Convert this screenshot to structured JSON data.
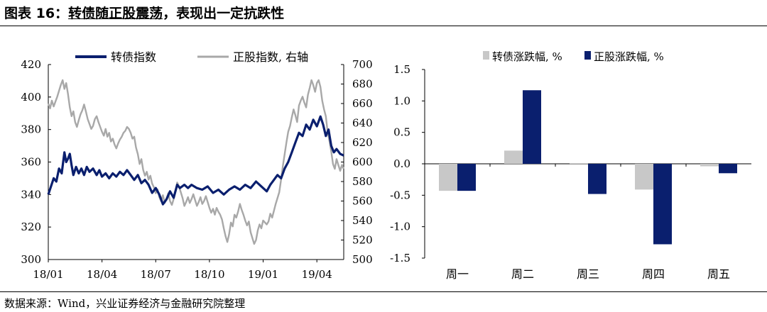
{
  "header": {
    "figure_label": "图表 16：",
    "title": "转债随正股震荡",
    "title_rest": "，表现出一定抗跌性"
  },
  "footer": {
    "source": "数据来源：Wind，兴业证券经济与金融研究院整理"
  },
  "colors": {
    "navy": "#0a1f6e",
    "gray": "#a8a8a8",
    "lightgray": "#c8c8c8"
  },
  "chart_data": [
    {
      "type": "line",
      "legend": [
        "转债指数",
        "正股指数, 右轴"
      ],
      "x_ticks": [
        "18/01",
        "18/04",
        "18/07",
        "18/10",
        "19/01",
        "19/04"
      ],
      "y_left": {
        "ticks": [
          "420",
          "400",
          "380",
          "360",
          "340",
          "320",
          "300"
        ],
        "lim": [
          300,
          420
        ]
      },
      "y_right": {
        "ticks": [
          "700",
          "680",
          "660",
          "640",
          "620",
          "600",
          "580",
          "560",
          "540",
          "520",
          "500"
        ],
        "lim": [
          500,
          700
        ]
      },
      "x_range": [
        0,
        16.5
      ],
      "series": [
        {
          "name": "转债指数",
          "axis": "left",
          "points": [
            [
              0,
              340
            ],
            [
              0.15,
              345
            ],
            [
              0.3,
              350
            ],
            [
              0.45,
              348
            ],
            [
              0.6,
              356
            ],
            [
              0.75,
              353
            ],
            [
              0.9,
              366
            ],
            [
              1.0,
              360
            ],
            [
              1.1,
              362
            ],
            [
              1.2,
              365
            ],
            [
              1.3,
              358
            ],
            [
              1.4,
              352
            ],
            [
              1.55,
              357
            ],
            [
              1.7,
              353
            ],
            [
              1.85,
              356
            ],
            [
              2.0,
              352
            ],
            [
              2.15,
              357
            ],
            [
              2.3,
              354
            ],
            [
              2.5,
              356
            ],
            [
              2.7,
              352
            ],
            [
              2.85,
              355
            ],
            [
              3.0,
              351
            ],
            [
              3.2,
              353
            ],
            [
              3.4,
              350
            ],
            [
              3.6,
              353
            ],
            [
              3.8,
              351
            ],
            [
              4.0,
              354
            ],
            [
              4.2,
              352
            ],
            [
              4.4,
              355
            ],
            [
              4.6,
              352
            ],
            [
              4.8,
              349
            ],
            [
              5.0,
              352
            ],
            [
              5.2,
              347
            ],
            [
              5.4,
              349
            ],
            [
              5.6,
              346
            ],
            [
              5.8,
              341
            ],
            [
              6.0,
              344
            ],
            [
              6.2,
              340
            ],
            [
              6.4,
              334
            ],
            [
              6.6,
              337
            ],
            [
              6.8,
              342
            ],
            [
              7.0,
              338
            ],
            [
              7.2,
              346
            ],
            [
              7.35,
              344
            ],
            [
              7.6,
              346
            ],
            [
              7.8,
              344
            ],
            [
              8.0,
              346
            ],
            [
              8.3,
              344
            ],
            [
              8.6,
              343
            ],
            [
              8.9,
              345
            ],
            [
              9.2,
              341
            ],
            [
              9.5,
              343
            ],
            [
              9.8,
              340
            ],
            [
              10.1,
              343
            ],
            [
              10.4,
              345
            ],
            [
              10.7,
              343
            ],
            [
              11.0,
              346
            ],
            [
              11.3,
              344
            ],
            [
              11.6,
              348
            ],
            [
              11.9,
              345
            ],
            [
              12.2,
              342
            ],
            [
              12.4,
              346
            ],
            [
              12.6,
              349
            ],
            [
              12.8,
              352
            ],
            [
              13.0,
              350
            ],
            [
              13.2,
              356
            ],
            [
              13.4,
              360
            ],
            [
              13.6,
              366
            ],
            [
              13.8,
              372
            ],
            [
              14.0,
              378
            ],
            [
              14.2,
              376
            ],
            [
              14.4,
              383
            ],
            [
              14.6,
              380
            ],
            [
              14.8,
              386
            ],
            [
              15.0,
              382
            ],
            [
              15.2,
              388
            ],
            [
              15.35,
              383
            ],
            [
              15.5,
              376
            ],
            [
              15.65,
              380
            ],
            [
              15.8,
              370
            ],
            [
              15.95,
              366
            ],
            [
              16.1,
              368
            ],
            [
              16.3,
              365
            ],
            [
              16.5,
              364
            ]
          ]
        },
        {
          "name": "正股指数, 右轴",
          "axis": "right",
          "points": [
            [
              0,
              660
            ],
            [
              0.1,
              655
            ],
            [
              0.2,
              663
            ],
            [
              0.3,
              657
            ],
            [
              0.4,
              662
            ],
            [
              0.5,
              667
            ],
            [
              0.6,
              673
            ],
            [
              0.7,
              679
            ],
            [
              0.8,
              684
            ],
            [
              0.9,
              675
            ],
            [
              1.0,
              681
            ],
            [
              1.1,
              670
            ],
            [
              1.2,
              656
            ],
            [
              1.3,
              647
            ],
            [
              1.4,
              652
            ],
            [
              1.5,
              641
            ],
            [
              1.6,
              636
            ],
            [
              1.7,
              643
            ],
            [
              1.8,
              649
            ],
            [
              1.9,
              653
            ],
            [
              2.0,
              659
            ],
            [
              2.1,
              652
            ],
            [
              2.2,
              644
            ],
            [
              2.3,
              639
            ],
            [
              2.4,
              634
            ],
            [
              2.5,
              637
            ],
            [
              2.6,
              644
            ],
            [
              2.7,
              647
            ],
            [
              2.8,
              641
            ],
            [
              2.9,
              636
            ],
            [
              3.0,
              631
            ],
            [
              3.1,
              627
            ],
            [
              3.2,
              634
            ],
            [
              3.3,
              626
            ],
            [
              3.4,
              630
            ],
            [
              3.5,
              621
            ],
            [
              3.6,
              624
            ],
            [
              3.7,
              618
            ],
            [
              3.8,
              614
            ],
            [
              3.9,
              619
            ],
            [
              4.0,
              623
            ],
            [
              4.1,
              626
            ],
            [
              4.2,
              630
            ],
            [
              4.3,
              632
            ],
            [
              4.4,
              636
            ],
            [
              4.5,
              634
            ],
            [
              4.6,
              630
            ],
            [
              4.7,
              624
            ],
            [
              4.8,
              626
            ],
            [
              4.9,
              615
            ],
            [
              5.0,
              608
            ],
            [
              5.1,
              598
            ],
            [
              5.2,
              603
            ],
            [
              5.3,
              592
            ],
            [
              5.4,
              586
            ],
            [
              5.5,
              590
            ],
            [
              5.6,
              582
            ],
            [
              5.7,
              586
            ],
            [
              5.8,
              578
            ],
            [
              5.9,
              574
            ],
            [
              6.0,
              568
            ],
            [
              6.1,
              572
            ],
            [
              6.2,
              564
            ],
            [
              6.3,
              560
            ],
            [
              6.4,
              566
            ],
            [
              6.5,
              558
            ],
            [
              6.6,
              562
            ],
            [
              6.7,
              568
            ],
            [
              6.8,
              560
            ],
            [
              6.9,
              556
            ],
            [
              7.0,
              562
            ],
            [
              7.1,
              570
            ],
            [
              7.2,
              579
            ],
            [
              7.3,
              575
            ],
            [
              7.4,
              569
            ],
            [
              7.5,
              563
            ],
            [
              7.6,
              555
            ],
            [
              7.7,
              559
            ],
            [
              7.8,
              564
            ],
            [
              7.9,
              558
            ],
            [
              8.0,
              562
            ],
            [
              8.1,
              567
            ],
            [
              8.2,
              561
            ],
            [
              8.3,
              555
            ],
            [
              8.4,
              559
            ],
            [
              8.5,
              564
            ],
            [
              8.6,
              557
            ],
            [
              8.7,
              560
            ],
            [
              8.8,
              565
            ],
            [
              8.9,
              559
            ],
            [
              9.0,
              553
            ],
            [
              9.1,
              548
            ],
            [
              9.2,
              552
            ],
            [
              9.3,
              546
            ],
            [
              9.4,
              553
            ],
            [
              9.5,
              549
            ],
            [
              9.6,
              546
            ],
            [
              9.7,
              541
            ],
            [
              9.8,
              532
            ],
            [
              9.9,
              524
            ],
            [
              10.0,
              518
            ],
            [
              10.1,
              526
            ],
            [
              10.2,
              538
            ],
            [
              10.3,
              534
            ],
            [
              10.4,
              546
            ],
            [
              10.5,
              543
            ],
            [
              10.6,
              549
            ],
            [
              10.7,
              557
            ],
            [
              10.8,
              551
            ],
            [
              10.9,
              546
            ],
            [
              11.0,
              540
            ],
            [
              11.1,
              535
            ],
            [
              11.2,
              539
            ],
            [
              11.3,
              528
            ],
            [
              11.4,
              522
            ],
            [
              11.5,
              516
            ],
            [
              11.6,
              520
            ],
            [
              11.7,
              530
            ],
            [
              11.8,
              536
            ],
            [
              11.9,
              532
            ],
            [
              12.0,
              540
            ],
            [
              12.1,
              538
            ],
            [
              12.2,
              536
            ],
            [
              12.3,
              539
            ],
            [
              12.4,
              547
            ],
            [
              12.5,
              543
            ],
            [
              12.6,
              550
            ],
            [
              12.7,
              557
            ],
            [
              12.8,
              563
            ],
            [
              12.9,
              569
            ],
            [
              13.0,
              582
            ],
            [
              13.1,
              596
            ],
            [
              13.2,
              608
            ],
            [
              13.3,
              620
            ],
            [
              13.4,
              631
            ],
            [
              13.5,
              637
            ],
            [
              13.6,
              646
            ],
            [
              13.7,
              654
            ],
            [
              13.8,
              648
            ],
            [
              13.9,
              641
            ],
            [
              14.0,
              658
            ],
            [
              14.1,
              663
            ],
            [
              14.2,
              667
            ],
            [
              14.3,
              661
            ],
            [
              14.4,
              656
            ],
            [
              14.5,
              669
            ],
            [
              14.6,
              676
            ],
            [
              14.7,
              684
            ],
            [
              14.8,
              679
            ],
            [
              14.9,
              672
            ],
            [
              15.0,
              681
            ],
            [
              15.1,
              684
            ],
            [
              15.2,
              677
            ],
            [
              15.3,
              663
            ],
            [
              15.4,
              654
            ],
            [
              15.5,
              647
            ],
            [
              15.6,
              631
            ],
            [
              15.7,
              622
            ],
            [
              15.8,
              611
            ],
            [
              15.9,
              598
            ],
            [
              16.0,
              593
            ],
            [
              16.1,
              603
            ],
            [
              16.2,
              597
            ],
            [
              16.3,
              591
            ],
            [
              16.4,
              597
            ],
            [
              16.5,
              593
            ]
          ]
        }
      ]
    },
    {
      "type": "bar",
      "categories": [
        "周一",
        "周二",
        "周三",
        "周四",
        "周五"
      ],
      "legend": [
        "转债涨跌幅, %",
        "正股涨跌幅, %"
      ],
      "y_ticks": [
        "1.5",
        "1.0",
        "0.5",
        "0.0",
        "-0.5",
        "-1.0",
        "-1.5"
      ],
      "ylim": [
        -1.5,
        1.5
      ],
      "series": [
        {
          "name": "转债涨跌幅, %",
          "values": [
            -0.43,
            0.21,
            0.01,
            -0.41,
            -0.04
          ]
        },
        {
          "name": "正股涨跌幅, %",
          "values": [
            -0.43,
            1.17,
            -0.48,
            -1.28,
            -0.15
          ]
        }
      ]
    }
  ]
}
